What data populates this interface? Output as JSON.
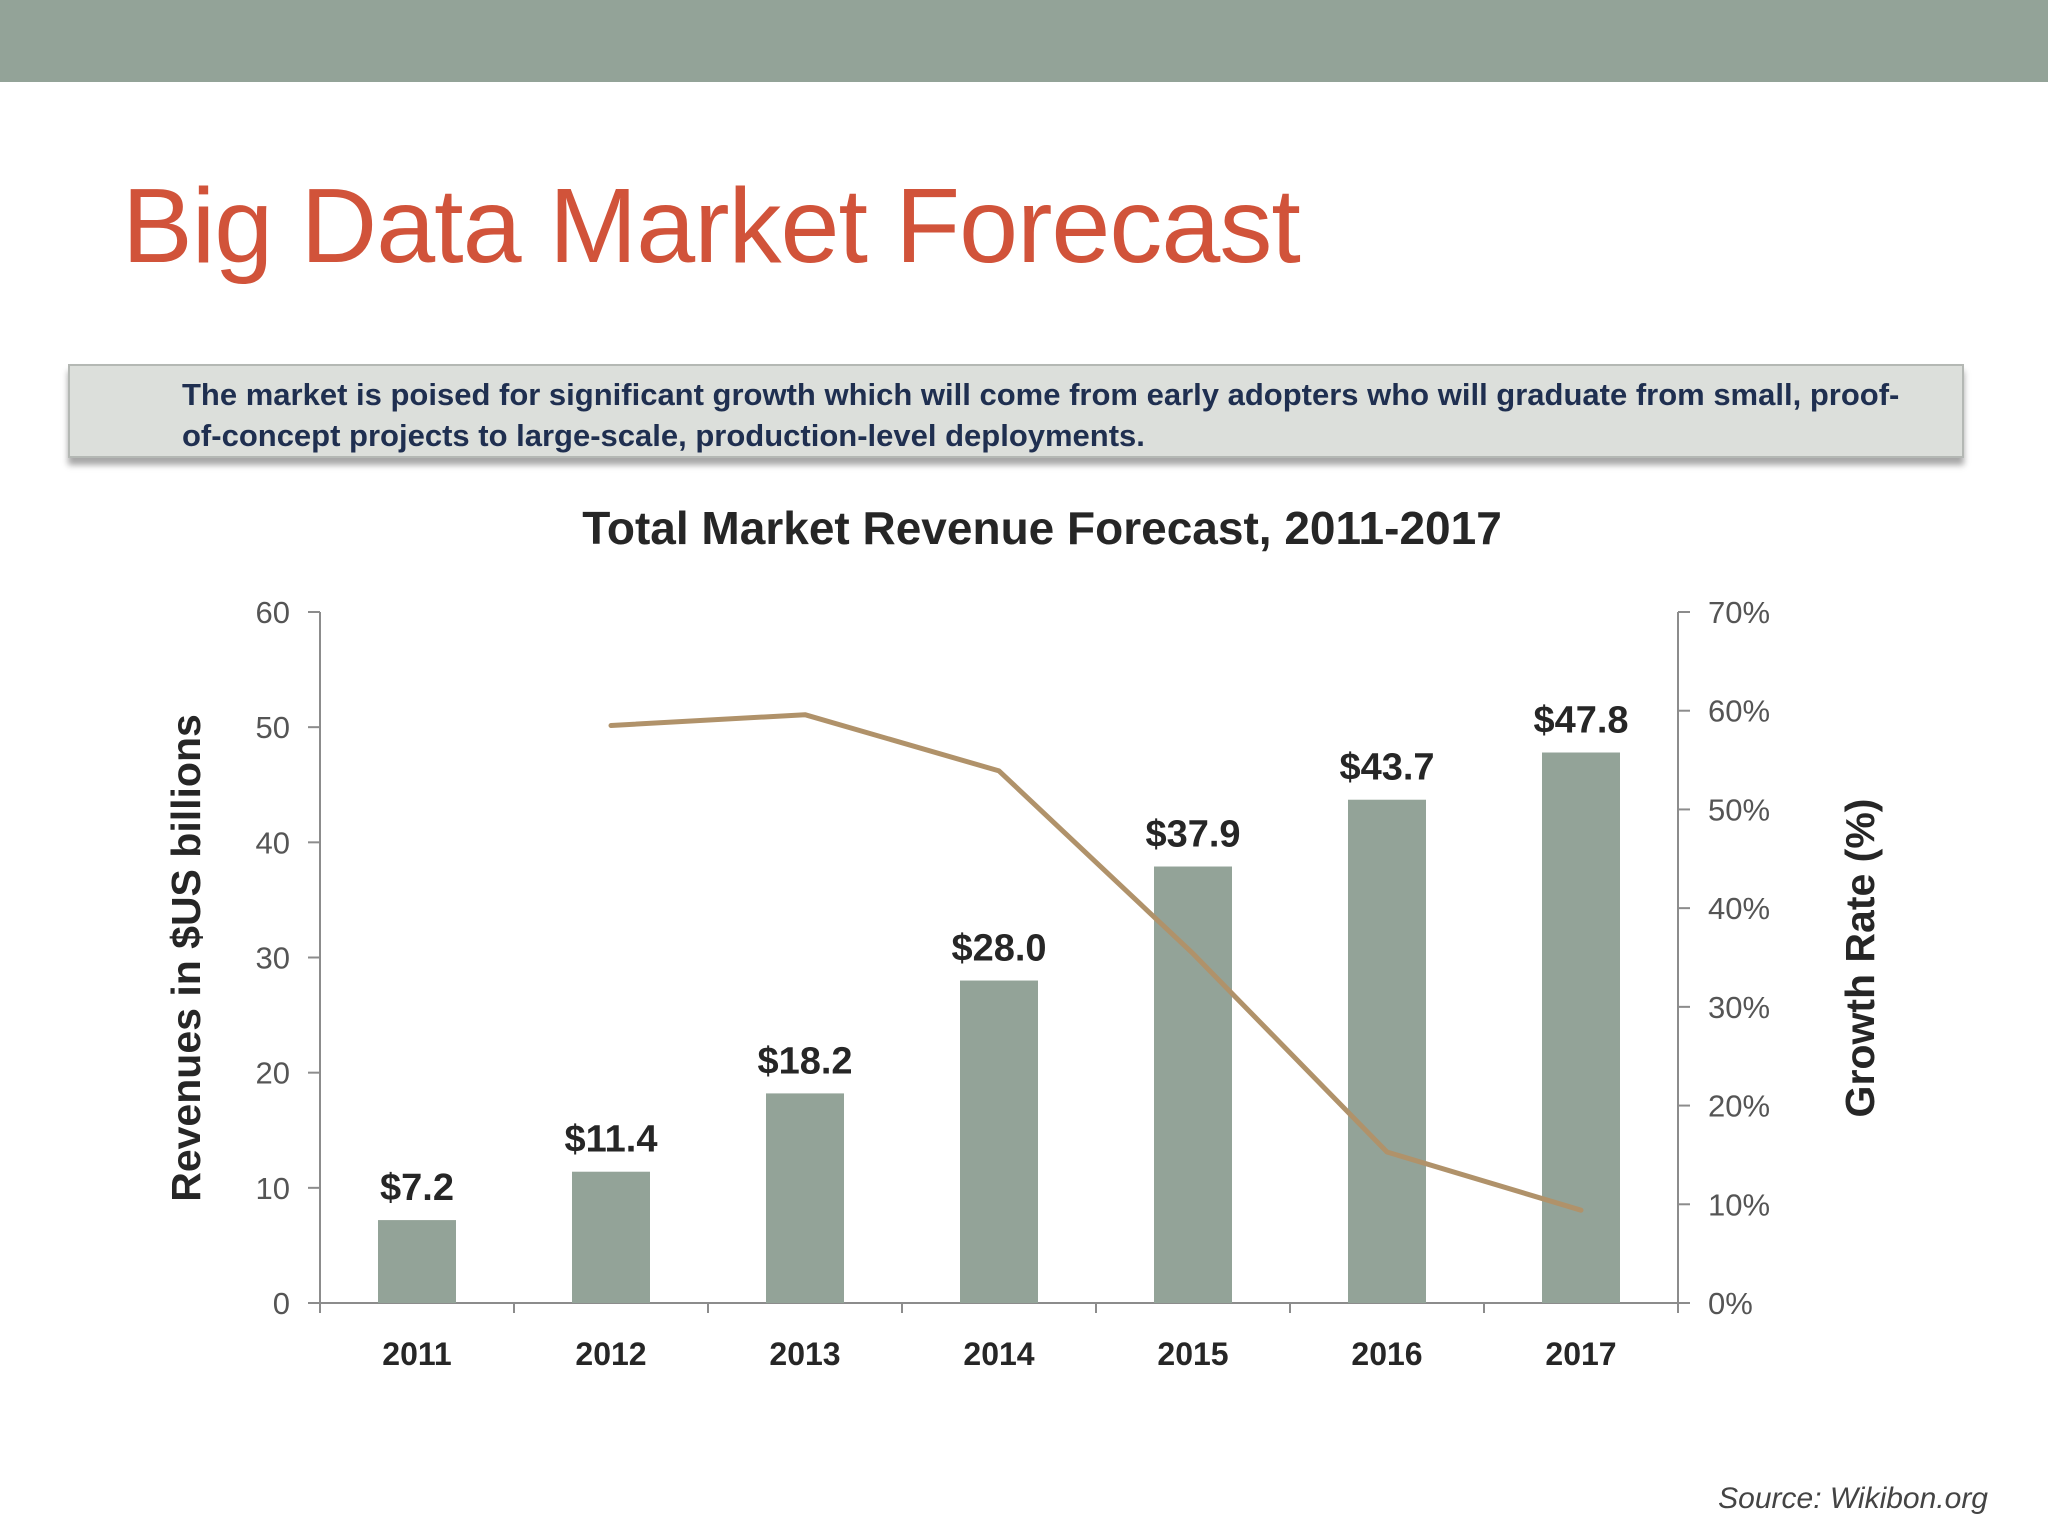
{
  "slide": {
    "title": "Big Data Market Forecast",
    "callout": "The market is poised for significant growth which will come from early adopters who will graduate from small, proof-of-concept projects to large-scale, production-level deployments.",
    "source": "Source: Wikibon.org"
  },
  "colors": {
    "top_band": "#93a398",
    "title": "#d1533a",
    "callout_text": "#1f2f50",
    "bar": "#93a398",
    "line": "#b0926a"
  },
  "chart_data": {
    "type": "bar",
    "title": "Total Market Revenue Forecast, 2011-2017",
    "categories": [
      "2011",
      "2012",
      "2013",
      "2014",
      "2015",
      "2016",
      "2017"
    ],
    "ylabel": "Revenues in $US billions",
    "y2label": "Growth Rate (%)",
    "ylim": [
      0,
      60
    ],
    "y2lim": [
      0,
      70
    ],
    "yticks": [
      0,
      10,
      20,
      30,
      40,
      50,
      60
    ],
    "y2ticks": [
      "0%",
      "10%",
      "20%",
      "30%",
      "40%",
      "50%",
      "60%",
      "70%"
    ],
    "grid": false,
    "series": [
      {
        "type": "bar",
        "axis": "left",
        "values": [
          7.2,
          11.4,
          18.2,
          28.0,
          37.9,
          43.7,
          47.8
        ],
        "labels": [
          "$7.2",
          "$11.4",
          "$18.2",
          "$28.0",
          "$37.9",
          "$43.7",
          "$47.8"
        ]
      },
      {
        "type": "line",
        "axis": "right",
        "values": [
          null,
          58.5,
          59.6,
          53.9,
          35.4,
          15.3,
          9.4
        ]
      }
    ]
  }
}
